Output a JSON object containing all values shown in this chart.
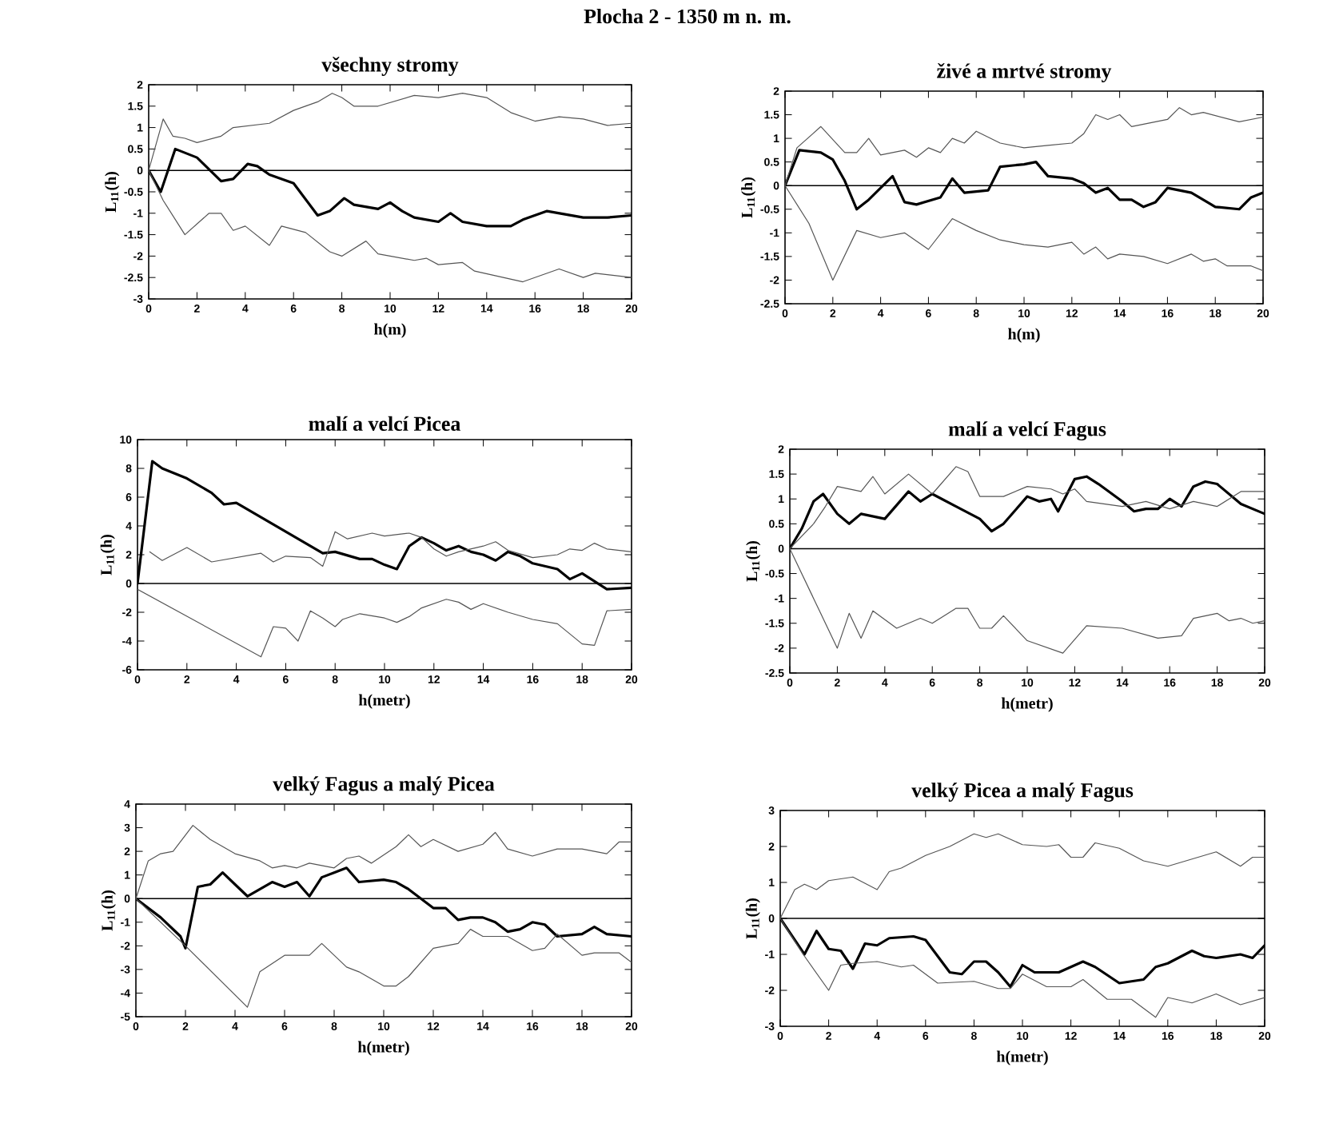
{
  "chart_data": [
    {
      "type": "line",
      "title": "všechny stromy",
      "xlabel": "h(m)",
      "ylabel": "L$_{11}$(h)",
      "annotations": [
        "Plocha 2 - 1350 m n. m."
      ],
      "xlim": [
        0,
        20
      ],
      "ylim": [
        -3,
        2
      ],
      "xticks": [
        0,
        2,
        4,
        6,
        8,
        10,
        12,
        14,
        16,
        18,
        20
      ],
      "yticks": [
        -3,
        -2.5,
        -2,
        -1.5,
        -1,
        -0.5,
        0,
        0.5,
        1,
        1.5,
        2
      ],
      "ref_lines": [
        {
          "axis": "y",
          "value": 0,
          "color": "#000000"
        }
      ],
      "grid": false,
      "marker": "none",
      "line_style": "solid",
      "series": [
        {
          "color": "#000000",
          "x": [
            0,
            0.5,
            1.1,
            2,
            3,
            3.5,
            4.1,
            4.5,
            5,
            6,
            7,
            7.5,
            8.1,
            8.5,
            9.5,
            10,
            10.5,
            11,
            12,
            12.5,
            13,
            14,
            15,
            15.5,
            16.5,
            17,
            18,
            19,
            20
          ],
          "values": [
            0,
            -0.5,
            0.5,
            0.3,
            -0.25,
            -0.2,
            0.15,
            0.1,
            -0.1,
            -0.3,
            -1.05,
            -0.95,
            -0.65,
            -0.8,
            -0.9,
            -0.75,
            -0.95,
            -1.1,
            -1.2,
            -1.0,
            -1.2,
            -1.3,
            -1.3,
            -1.15,
            -0.95,
            -1.0,
            -1.1,
            -1.1,
            -1.05
          ]
        },
        {
          "color": "#555555",
          "x": [
            0,
            0.6,
            1,
            1.5,
            2,
            3,
            3.5,
            5,
            6,
            7,
            7.6,
            8,
            8.5,
            9.5,
            11,
            12,
            13,
            14,
            15,
            16,
            17,
            18,
            19,
            20
          ],
          "values": [
            0,
            1.2,
            0.8,
            0.75,
            0.65,
            0.8,
            1.0,
            1.1,
            1.4,
            1.6,
            1.8,
            1.7,
            1.5,
            1.5,
            1.75,
            1.7,
            1.8,
            1.7,
            1.35,
            1.15,
            1.25,
            1.2,
            1.05,
            1.1
          ]
        },
        {
          "color": "#555555",
          "x": [
            0,
            0.6,
            1.5,
            2.5,
            3,
            3.5,
            4,
            5,
            5.5,
            6.5,
            7.5,
            8,
            9,
            9.5,
            11,
            11.5,
            12,
            13,
            13.5,
            15.5,
            17,
            18,
            18.5,
            20
          ],
          "values": [
            0,
            -0.7,
            -1.5,
            -1.0,
            -1.0,
            -1.4,
            -1.3,
            -1.75,
            -1.3,
            -1.45,
            -1.9,
            -2.0,
            -1.65,
            -1.95,
            -2.1,
            -2.05,
            -2.2,
            -2.15,
            -2.35,
            -2.6,
            -2.3,
            -2.5,
            -2.4,
            -2.5
          ]
        }
      ]
    },
    {
      "type": "line",
      "title": "živé a mrtvé stromy",
      "xlabel": "h(m)",
      "ylabel": "L$_{11}$(h)",
      "xlim": [
        0,
        20
      ],
      "ylim": [
        -2.5,
        2
      ],
      "xticks": [
        0,
        2,
        4,
        6,
        8,
        10,
        12,
        14,
        16,
        18,
        20
      ],
      "yticks": [
        -2.5,
        -2,
        -1.5,
        -1,
        -0.5,
        0,
        0.5,
        1,
        1.5,
        2
      ],
      "ref_lines": [
        {
          "axis": "y",
          "value": 0,
          "color": "#000000"
        }
      ],
      "grid": false,
      "marker": "none",
      "line_style": "solid",
      "series": [
        {
          "color": "#000000",
          "x": [
            0,
            0.6,
            1.5,
            2,
            2.5,
            3,
            3.5,
            4.5,
            5,
            5.5,
            6.5,
            7,
            7.5,
            8.5,
            9,
            10,
            10.5,
            11,
            12,
            12.5,
            13,
            13.5,
            14,
            14.5,
            15,
            15.5,
            16,
            17,
            18,
            19,
            19.5,
            20
          ],
          "values": [
            0,
            0.75,
            0.7,
            0.55,
            0.1,
            -0.5,
            -0.3,
            0.2,
            -0.35,
            -0.4,
            -0.25,
            0.15,
            -0.15,
            -0.1,
            0.4,
            0.45,
            0.5,
            0.2,
            0.15,
            0.05,
            -0.15,
            -0.05,
            -0.3,
            -0.3,
            -0.45,
            -0.35,
            -0.05,
            -0.15,
            -0.45,
            -0.5,
            -0.25,
            -0.15
          ]
        },
        {
          "color": "#555555",
          "x": [
            0,
            0.5,
            1.5,
            2.5,
            3,
            3.5,
            4,
            5,
            5.5,
            6,
            6.5,
            7,
            7.5,
            8,
            9,
            10,
            11,
            12,
            12.5,
            13,
            13.5,
            14,
            14.5,
            16,
            16.5,
            17,
            17.5,
            19,
            20
          ],
          "values": [
            0,
            0.8,
            1.25,
            0.7,
            0.7,
            1.0,
            0.65,
            0.75,
            0.6,
            0.8,
            0.7,
            1.0,
            0.9,
            1.15,
            0.9,
            0.8,
            0.85,
            0.9,
            1.1,
            1.5,
            1.4,
            1.5,
            1.25,
            1.4,
            1.65,
            1.5,
            1.55,
            1.35,
            1.45
          ]
        },
        {
          "color": "#555555",
          "x": [
            0,
            1,
            2,
            3,
            4,
            5,
            6,
            7,
            8,
            9,
            10,
            11,
            12,
            12.5,
            13,
            13.5,
            14,
            15,
            16,
            17,
            17.5,
            18,
            18.5,
            19.5,
            20
          ],
          "values": [
            0,
            -0.8,
            -2.0,
            -0.95,
            -1.1,
            -1.0,
            -1.35,
            -0.7,
            -0.95,
            -1.15,
            -1.25,
            -1.3,
            -1.2,
            -1.45,
            -1.3,
            -1.55,
            -1.45,
            -1.5,
            -1.65,
            -1.45,
            -1.6,
            -1.55,
            -1.7,
            -1.7,
            -1.8
          ]
        }
      ]
    },
    {
      "type": "line",
      "title": "malí a velcí Picea",
      "xlabel": "h(metr)",
      "ylabel": "L$_{11}$(h)",
      "xlim": [
        0,
        20
      ],
      "ylim": [
        -6,
        10
      ],
      "xticks": [
        0,
        2,
        4,
        6,
        8,
        10,
        12,
        14,
        16,
        18,
        20
      ],
      "yticks": [
        -6,
        -4,
        -2,
        0,
        2,
        4,
        6,
        8,
        10
      ],
      "ref_lines": [
        {
          "axis": "y",
          "value": 0,
          "color": "#000000"
        }
      ],
      "grid": false,
      "marker": "none",
      "line_style": "solid",
      "series": [
        {
          "color": "#000000",
          "x": [
            0,
            0.6,
            1,
            2,
            3,
            3.5,
            4,
            5,
            6,
            7,
            7.5,
            8,
            9,
            9.5,
            10,
            10.5,
            11,
            11.5,
            12,
            12.5,
            13,
            13.5,
            14,
            14.5,
            15,
            15.5,
            16,
            17,
            17.5,
            18,
            19,
            20
          ],
          "values": [
            0,
            8.5,
            8.0,
            7.3,
            6.3,
            5.5,
            5.6,
            4.6,
            3.6,
            2.6,
            2.1,
            2.2,
            1.7,
            1.7,
            1.3,
            1.0,
            2.6,
            3.2,
            2.8,
            2.3,
            2.6,
            2.2,
            2.0,
            1.6,
            2.2,
            1.9,
            1.4,
            1.0,
            0.3,
            0.7,
            -0.4,
            -0.3
          ]
        },
        {
          "color": "#555555",
          "x": [
            0.5,
            1,
            2,
            3,
            4,
            5,
            5.5,
            6,
            7,
            7.5,
            8,
            8.5,
            9.5,
            10,
            11,
            11.5,
            12,
            12.5,
            13,
            14,
            14.5,
            15,
            16,
            17,
            17.5,
            18,
            18.5,
            19,
            20
          ],
          "values": [
            2.2,
            1.6,
            2.5,
            1.5,
            1.8,
            2.1,
            1.5,
            1.9,
            1.8,
            1.2,
            3.6,
            3.1,
            3.5,
            3.3,
            3.5,
            3.2,
            2.4,
            1.9,
            2.2,
            2.6,
            2.9,
            2.3,
            1.8,
            2.0,
            2.4,
            2.3,
            2.8,
            2.4,
            2.2
          ]
        },
        {
          "color": "#555555",
          "x": [
            0,
            5,
            5.5,
            6,
            6.5,
            7,
            7.5,
            8,
            8.3,
            9,
            10,
            10.5,
            11,
            11.5,
            12.5,
            13,
            13.5,
            14,
            15,
            16,
            17,
            18,
            18.5,
            19,
            20
          ],
          "values": [
            -0.4,
            -5.1,
            -3.0,
            -3.1,
            -4.0,
            -1.9,
            -2.4,
            -3.0,
            -2.5,
            -2.1,
            -2.4,
            -2.7,
            -2.3,
            -1.7,
            -1.1,
            -1.3,
            -1.8,
            -1.4,
            -2.0,
            -2.5,
            -2.8,
            -4.2,
            -4.3,
            -1.9,
            -1.8
          ]
        }
      ]
    },
    {
      "type": "line",
      "title": "malí a velcí Fagus",
      "xlabel": "h(metr)",
      "ylabel": "L$_{11}$(h)",
      "xlim": [
        0,
        20
      ],
      "ylim": [
        -2.5,
        2
      ],
      "xticks": [
        0,
        2,
        4,
        6,
        8,
        10,
        12,
        14,
        16,
        18,
        20
      ],
      "yticks": [
        -2.5,
        -2,
        -1.5,
        -1,
        -0.5,
        0,
        0.5,
        1,
        1.5,
        2
      ],
      "ref_lines": [
        {
          "axis": "y",
          "value": 0,
          "color": "#000000"
        }
      ],
      "grid": false,
      "marker": "none",
      "line_style": "solid",
      "series": [
        {
          "color": "#000000",
          "x": [
            0,
            0.5,
            1,
            1.4,
            2,
            2.5,
            3,
            4,
            5,
            5.5,
            6,
            7,
            8,
            8.5,
            9,
            10,
            10.5,
            11,
            11.3,
            12,
            12.5,
            13,
            14,
            14.5,
            15,
            15.5,
            16,
            16.5,
            17,
            17.5,
            18,
            19,
            20
          ],
          "values": [
            0,
            0.4,
            0.95,
            1.1,
            0.7,
            0.5,
            0.7,
            0.6,
            1.15,
            0.95,
            1.1,
            0.85,
            0.6,
            0.35,
            0.5,
            1.05,
            0.95,
            1.0,
            0.75,
            1.4,
            1.45,
            1.3,
            0.95,
            0.75,
            0.8,
            0.8,
            1.0,
            0.85,
            1.25,
            1.35,
            1.3,
            0.9,
            0.7
          ]
        },
        {
          "color": "#555555",
          "x": [
            0,
            1,
            1.5,
            2,
            3,
            3.5,
            4,
            5,
            6,
            7,
            7.5,
            8,
            9,
            10,
            11,
            11.5,
            12,
            12.5,
            14,
            15,
            16,
            17,
            18,
            19,
            20
          ],
          "values": [
            0,
            0.5,
            0.85,
            1.25,
            1.15,
            1.45,
            1.1,
            1.5,
            1.1,
            1.65,
            1.55,
            1.05,
            1.05,
            1.25,
            1.2,
            1.1,
            1.2,
            0.95,
            0.85,
            0.95,
            0.8,
            0.95,
            0.85,
            1.15,
            1.15
          ]
        },
        {
          "color": "#555555",
          "x": [
            0,
            1,
            2,
            2.5,
            3,
            3.5,
            4.5,
            5.5,
            6,
            7,
            7.5,
            8,
            8.5,
            9,
            10,
            11.5,
            12.5,
            14,
            15.5,
            16.5,
            17,
            18,
            18.5,
            19,
            19.5,
            20
          ],
          "values": [
            0,
            -1.0,
            -2.0,
            -1.3,
            -1.8,
            -1.25,
            -1.6,
            -1.4,
            -1.5,
            -1.2,
            -1.2,
            -1.6,
            -1.6,
            -1.35,
            -1.85,
            -2.1,
            -1.55,
            -1.6,
            -1.8,
            -1.75,
            -1.4,
            -1.3,
            -1.45,
            -1.4,
            -1.5,
            -1.45
          ]
        }
      ]
    },
    {
      "type": "line",
      "title": "velký Fagus a malý Picea",
      "xlabel": "h(metr)",
      "ylabel": "L$_{11}$(h)",
      "xlim": [
        0,
        20
      ],
      "ylim": [
        -5,
        4
      ],
      "xticks": [
        0,
        2,
        4,
        6,
        8,
        10,
        12,
        14,
        16,
        18,
        20
      ],
      "yticks": [
        -5,
        -4,
        -3,
        -2,
        -1,
        0,
        1,
        2,
        3,
        4
      ],
      "ref_lines": [
        {
          "axis": "y",
          "value": 0,
          "color": "#000000"
        }
      ],
      "grid": false,
      "marker": "none",
      "line_style": "solid",
      "series": [
        {
          "color": "#000000",
          "x": [
            0,
            1,
            1.8,
            2,
            2.5,
            3,
            3.5,
            4,
            4.5,
            5,
            5.5,
            6,
            6.5,
            7,
            7.5,
            8,
            8.5,
            9,
            10,
            10.5,
            11,
            12,
            12.5,
            13,
            13.5,
            14,
            14.5,
            15,
            15.5,
            16,
            16.5,
            17,
            18,
            18.5,
            19,
            20
          ],
          "values": [
            0,
            -0.8,
            -1.6,
            -2.1,
            0.5,
            0.6,
            1.1,
            0.6,
            0.1,
            0.4,
            0.7,
            0.5,
            0.7,
            0.1,
            0.9,
            1.1,
            1.3,
            0.7,
            0.8,
            0.7,
            0.4,
            -0.4,
            -0.4,
            -0.9,
            -0.8,
            -0.8,
            -1.0,
            -1.4,
            -1.3,
            -1.0,
            -1.1,
            -1.6,
            -1.5,
            -1.2,
            -1.5,
            -1.6
          ]
        },
        {
          "color": "#555555",
          "x": [
            0,
            0.5,
            1,
            1.5,
            2.3,
            3,
            4,
            5,
            5.5,
            6,
            6.5,
            7,
            8,
            8.5,
            9,
            9.5,
            10.5,
            11,
            11.5,
            12,
            13,
            14,
            14.5,
            15,
            16,
            17,
            18,
            19,
            19.5,
            20
          ],
          "values": [
            0,
            1.6,
            1.9,
            2.0,
            3.1,
            2.5,
            1.9,
            1.6,
            1.3,
            1.4,
            1.3,
            1.5,
            1.3,
            1.7,
            1.8,
            1.5,
            2.2,
            2.7,
            2.2,
            2.5,
            2.0,
            2.3,
            2.8,
            2.1,
            1.8,
            2.1,
            2.1,
            1.9,
            2.4,
            2.4
          ]
        },
        {
          "color": "#555555",
          "x": [
            0,
            2,
            4.5,
            5,
            6,
            7,
            7.5,
            8.5,
            9,
            10,
            10.5,
            11,
            12,
            13,
            13.5,
            14,
            15,
            16,
            16.5,
            17,
            18,
            18.5,
            19.5,
            20
          ],
          "values": [
            0,
            -2.0,
            -4.6,
            -3.1,
            -2.4,
            -2.4,
            -1.9,
            -2.9,
            -3.1,
            -3.7,
            -3.7,
            -3.3,
            -2.1,
            -1.9,
            -1.3,
            -1.6,
            -1.6,
            -2.2,
            -2.1,
            -1.5,
            -2.4,
            -2.3,
            -2.3,
            -2.7
          ]
        }
      ]
    },
    {
      "type": "line",
      "title": "velký Picea a malý Fagus",
      "xlabel": "h(metr)",
      "ylabel": "L$_{11}$(h)",
      "xlim": [
        0,
        20
      ],
      "ylim": [
        -3,
        3
      ],
      "xticks": [
        0,
        2,
        4,
        6,
        8,
        10,
        12,
        14,
        16,
        18,
        20
      ],
      "yticks": [
        -3,
        -2,
        -1,
        0,
        1,
        2,
        3
      ],
      "ref_lines": [
        {
          "axis": "y",
          "value": 0,
          "color": "#000000"
        }
      ],
      "grid": false,
      "marker": "none",
      "line_style": "solid",
      "series": [
        {
          "color": "#000000",
          "x": [
            0,
            1,
            1.5,
            2,
            2.5,
            3,
            3.5,
            4,
            4.5,
            5.5,
            6,
            7,
            7.5,
            8,
            8.5,
            9,
            9.5,
            10,
            10.5,
            11.5,
            12.5,
            13,
            14,
            15,
            15.5,
            16,
            17,
            17.5,
            18,
            19,
            19.5,
            20
          ],
          "values": [
            0,
            -1.0,
            -0.35,
            -0.85,
            -0.9,
            -1.4,
            -0.7,
            -0.75,
            -0.55,
            -0.5,
            -0.6,
            -1.5,
            -1.55,
            -1.2,
            -1.2,
            -1.5,
            -1.9,
            -1.3,
            -1.5,
            -1.5,
            -1.2,
            -1.35,
            -1.8,
            -1.7,
            -1.35,
            -1.25,
            -0.9,
            -1.05,
            -1.1,
            -1.0,
            -1.1,
            -0.75
          ]
        },
        {
          "color": "#555555",
          "x": [
            0,
            0.6,
            1,
            1.5,
            2,
            3,
            4,
            4.5,
            5,
            6,
            7,
            8,
            8.5,
            9,
            10,
            11,
            11.5,
            12,
            12.5,
            13,
            14,
            15,
            16,
            17,
            18,
            19,
            19.5,
            20
          ],
          "values": [
            0,
            0.8,
            0.95,
            0.8,
            1.05,
            1.15,
            0.8,
            1.3,
            1.4,
            1.75,
            2.0,
            2.35,
            2.25,
            2.35,
            2.05,
            2.0,
            2.05,
            1.7,
            1.7,
            2.1,
            1.95,
            1.6,
            1.45,
            1.65,
            1.85,
            1.45,
            1.7,
            1.7
          ]
        },
        {
          "color": "#555555",
          "x": [
            0,
            1,
            2,
            2.5,
            3,
            4,
            5,
            5.5,
            6.5,
            8,
            9,
            9.5,
            10,
            11,
            12,
            12.5,
            13.5,
            14.5,
            15.5,
            16,
            17,
            18,
            19,
            20
          ],
          "values": [
            0,
            -1.05,
            -2.0,
            -1.3,
            -1.25,
            -1.2,
            -1.35,
            -1.3,
            -1.8,
            -1.75,
            -1.95,
            -1.95,
            -1.55,
            -1.9,
            -1.9,
            -1.7,
            -2.25,
            -2.25,
            -2.75,
            -2.2,
            -2.35,
            -2.1,
            -2.4,
            -2.2
          ]
        }
      ]
    }
  ]
}
